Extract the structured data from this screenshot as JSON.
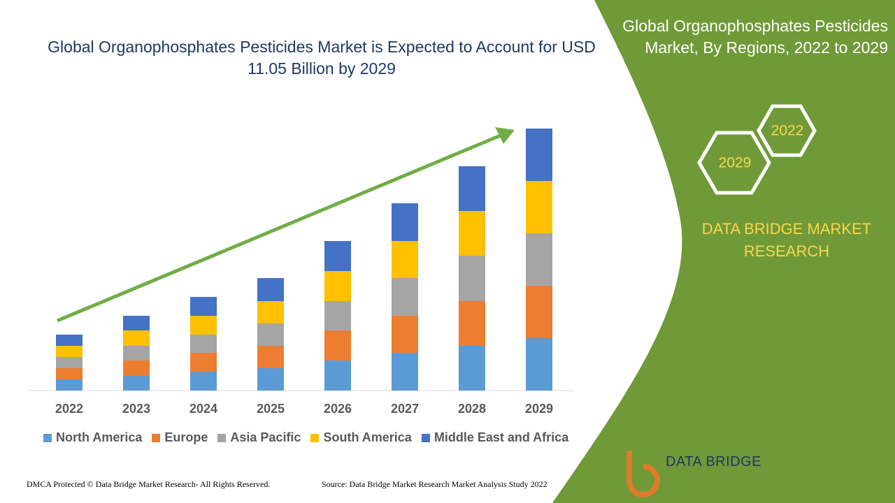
{
  "chart_data": {
    "type": "bar",
    "stacked": true,
    "title": "Global Organophosphates Pesticides Market is Expected to Account for USD 11.05 Billion by 2029",
    "categories": [
      "2022",
      "2023",
      "2024",
      "2025",
      "2026",
      "2027",
      "2028",
      "2029"
    ],
    "series": [
      {
        "name": "North America",
        "color": "#5b9bd5",
        "values": [
          16,
          21,
          27,
          32,
          43,
          54,
          64,
          75
        ]
      },
      {
        "name": "Europe",
        "color": "#ed7d31",
        "values": [
          16,
          22,
          27,
          32,
          43,
          53,
          64,
          75
        ]
      },
      {
        "name": "Asia Pacific",
        "color": "#a5a5a5",
        "values": [
          16,
          21,
          26,
          32,
          42,
          54,
          65,
          75
        ]
      },
      {
        "name": "South America",
        "color": "#ffc000",
        "values": [
          16,
          22,
          27,
          32,
          43,
          53,
          64,
          75
        ]
      },
      {
        "name": "Middle East and Africa",
        "color": "#4472c4",
        "values": [
          16,
          21,
          27,
          33,
          43,
          54,
          64,
          75
        ]
      }
    ]
  },
  "side_panel": {
    "title": "Global Organophosphates Pesticides Market, By Regions, 2022 to 2029",
    "hexagons": [
      "2022",
      "2029"
    ],
    "brand": "DATA BRIDGE MARKET RESEARCH"
  },
  "logo": {
    "name": "DATA BRIDGE"
  },
  "footer": {
    "copyright": "DMCA Protected © Data Bridge Market Research- All Rights Reserved.",
    "source": "Source: Data Bridge Market Research Market Analysis Study 2022"
  }
}
